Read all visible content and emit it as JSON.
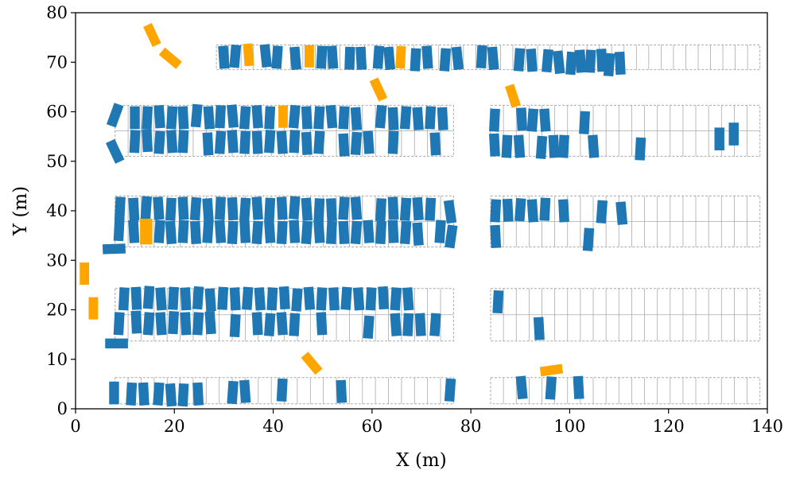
{
  "chart_data": {
    "type": "scatter",
    "title": "",
    "xlabel": "X (m)",
    "ylabel": "Y (m)",
    "xlim": [
      0,
      140
    ],
    "ylim": [
      0,
      80
    ],
    "xticks": [
      0,
      20,
      40,
      60,
      80,
      100,
      120,
      140
    ],
    "yticks": [
      0,
      10,
      20,
      30,
      40,
      50,
      60,
      70,
      80
    ],
    "grid": false,
    "legend": null,
    "colors": {
      "parked": "#1f77b4",
      "moving": "#ffa500",
      "slot_outline": "#aaaaaa"
    },
    "slot_rows": [
      {
        "x0": 28.5,
        "x1": 138.5,
        "y0": 68.5,
        "y1": 73.5,
        "n": 44,
        "divider": false
      },
      {
        "x0": 8,
        "x1": 76.5,
        "y0": 51,
        "y1": 61.3,
        "n": 26,
        "divider": true
      },
      {
        "x0": 84,
        "x1": 138.5,
        "y0": 51,
        "y1": 61.3,
        "n": 21,
        "divider": true
      },
      {
        "x0": 8,
        "x1": 76.5,
        "y0": 32.7,
        "y1": 43,
        "n": 26,
        "divider": true
      },
      {
        "x0": 84,
        "x1": 138.5,
        "y0": 32.7,
        "y1": 43,
        "n": 21,
        "divider": true
      },
      {
        "x0": 8,
        "x1": 76.5,
        "y0": 13.7,
        "y1": 24.3,
        "n": 26,
        "divider": true
      },
      {
        "x0": 84,
        "x1": 138.5,
        "y0": 13.7,
        "y1": 24.3,
        "n": 21,
        "divider": true
      },
      {
        "x0": 8,
        "x1": 76.5,
        "y0": 1,
        "y1": 6.3,
        "n": 26,
        "divider": false
      },
      {
        "x0": 84,
        "x1": 138.5,
        "y0": 1,
        "y1": 6.3,
        "n": 21,
        "divider": false
      }
    ],
    "parked_vehicles": [
      {
        "x": 30,
        "y": 71,
        "a": -4
      },
      {
        "x": 32.3,
        "y": 71.2,
        "a": 5
      },
      {
        "x": 38.5,
        "y": 71.3,
        "a": -6
      },
      {
        "x": 40.8,
        "y": 71,
        "a": 4
      },
      {
        "x": 44.5,
        "y": 70.8,
        "a": -5
      },
      {
        "x": 49.8,
        "y": 71,
        "a": 3
      },
      {
        "x": 52,
        "y": 71,
        "a": -4
      },
      {
        "x": 55.5,
        "y": 70.8,
        "a": 2
      },
      {
        "x": 57.8,
        "y": 70.8,
        "a": -3
      },
      {
        "x": 61.3,
        "y": 71,
        "a": 4
      },
      {
        "x": 63.5,
        "y": 70.8,
        "a": -5
      },
      {
        "x": 68.8,
        "y": 70.5,
        "a": 3
      },
      {
        "x": 71.2,
        "y": 71,
        "a": -4
      },
      {
        "x": 74.8,
        "y": 70.5,
        "a": 4
      },
      {
        "x": 77.3,
        "y": 70.8,
        "a": -6
      },
      {
        "x": 82.2,
        "y": 71.1,
        "a": 3
      },
      {
        "x": 84.5,
        "y": 70.8,
        "a": -5
      },
      {
        "x": 89.8,
        "y": 70.5,
        "a": 4
      },
      {
        "x": 92.3,
        "y": 70.4,
        "a": -4
      },
      {
        "x": 95.5,
        "y": 70.3,
        "a": 5
      },
      {
        "x": 97.8,
        "y": 70,
        "a": -6
      },
      {
        "x": 100.3,
        "y": 69.8,
        "a": 4
      },
      {
        "x": 102.2,
        "y": 70.2,
        "a": -4
      },
      {
        "x": 104.2,
        "y": 70.2,
        "a": 3
      },
      {
        "x": 106.5,
        "y": 70.4,
        "a": -3
      },
      {
        "x": 108,
        "y": 69.5,
        "a": 4
      },
      {
        "x": 110.2,
        "y": 69.8,
        "a": -3
      },
      {
        "x": 8,
        "y": 59.3,
        "a": 20
      },
      {
        "x": 12,
        "y": 58.8,
        "a": 0
      },
      {
        "x": 14.5,
        "y": 58.8,
        "a": 3
      },
      {
        "x": 17,
        "y": 59,
        "a": -4
      },
      {
        "x": 19.5,
        "y": 58.8,
        "a": 4
      },
      {
        "x": 21.8,
        "y": 58.8,
        "a": -3
      },
      {
        "x": 24.5,
        "y": 59.2,
        "a": 5
      },
      {
        "x": 27,
        "y": 58.8,
        "a": -4
      },
      {
        "x": 29.3,
        "y": 59,
        "a": 3
      },
      {
        "x": 31.8,
        "y": 59.1,
        "a": -5
      },
      {
        "x": 34.3,
        "y": 58.8,
        "a": 4
      },
      {
        "x": 36.8,
        "y": 59,
        "a": -4
      },
      {
        "x": 39.3,
        "y": 58.8,
        "a": 3
      },
      {
        "x": 44.3,
        "y": 59,
        "a": 5
      },
      {
        "x": 46.8,
        "y": 58.8,
        "a": -3
      },
      {
        "x": 49.3,
        "y": 58.8,
        "a": 4
      },
      {
        "x": 51.8,
        "y": 59,
        "a": -5
      },
      {
        "x": 54.3,
        "y": 58.8,
        "a": 3
      },
      {
        "x": 56.8,
        "y": 58.6,
        "a": -4
      },
      {
        "x": 61.8,
        "y": 59,
        "a": 5
      },
      {
        "x": 64.3,
        "y": 58.6,
        "a": -3
      },
      {
        "x": 66.8,
        "y": 58.8,
        "a": 4
      },
      {
        "x": 69.3,
        "y": 58.6,
        "a": -4
      },
      {
        "x": 71.8,
        "y": 58.8,
        "a": 3
      },
      {
        "x": 74.3,
        "y": 58.6,
        "a": -3
      },
      {
        "x": 84.8,
        "y": 58.3,
        "a": 3
      },
      {
        "x": 90.3,
        "y": 58.5,
        "a": -3
      },
      {
        "x": 92.5,
        "y": 58.3,
        "a": 4
      },
      {
        "x": 95,
        "y": 58.3,
        "a": -4
      },
      {
        "x": 103,
        "y": 57.8,
        "a": 3
      },
      {
        "x": 8,
        "y": 52,
        "a": -25
      },
      {
        "x": 12,
        "y": 54,
        "a": 3
      },
      {
        "x": 14.5,
        "y": 54.2,
        "a": -3
      },
      {
        "x": 17,
        "y": 53.8,
        "a": 4
      },
      {
        "x": 19.5,
        "y": 54,
        "a": -4
      },
      {
        "x": 21.8,
        "y": 54,
        "a": 3
      },
      {
        "x": 26.8,
        "y": 53.5,
        "a": -3
      },
      {
        "x": 29.3,
        "y": 53.8,
        "a": 4
      },
      {
        "x": 31.8,
        "y": 54,
        "a": -4
      },
      {
        "x": 34.3,
        "y": 53.8,
        "a": 3
      },
      {
        "x": 36.8,
        "y": 53.8,
        "a": -3
      },
      {
        "x": 39.3,
        "y": 54,
        "a": 4
      },
      {
        "x": 41.8,
        "y": 53.8,
        "a": -4
      },
      {
        "x": 44.3,
        "y": 54,
        "a": 3
      },
      {
        "x": 46.8,
        "y": 53.6,
        "a": -3
      },
      {
        "x": 49.3,
        "y": 53.8,
        "a": 4
      },
      {
        "x": 54.3,
        "y": 53.3,
        "a": -3
      },
      {
        "x": 56.8,
        "y": 53.6,
        "a": 4
      },
      {
        "x": 59.3,
        "y": 53.8,
        "a": -4
      },
      {
        "x": 64.3,
        "y": 53.8,
        "a": 3
      },
      {
        "x": 72.8,
        "y": 53.5,
        "a": -3
      },
      {
        "x": 84.8,
        "y": 53.3,
        "a": -3
      },
      {
        "x": 87.3,
        "y": 53,
        "a": 3
      },
      {
        "x": 89.8,
        "y": 53,
        "a": -4
      },
      {
        "x": 94.3,
        "y": 52.8,
        "a": 4
      },
      {
        "x": 96.8,
        "y": 53,
        "a": -3
      },
      {
        "x": 98.8,
        "y": 53,
        "a": 3
      },
      {
        "x": 104.8,
        "y": 53,
        "a": -4
      },
      {
        "x": 114.3,
        "y": 52.5,
        "a": 3
      },
      {
        "x": 130.3,
        "y": 54.5,
        "a": 0
      },
      {
        "x": 133.2,
        "y": 55.5,
        "a": 0
      },
      {
        "x": 9,
        "y": 40.5,
        "a": 3
      },
      {
        "x": 11.8,
        "y": 40.3,
        "a": -3
      },
      {
        "x": 14.3,
        "y": 40.6,
        "a": 4
      },
      {
        "x": 16.8,
        "y": 40.5,
        "a": -4
      },
      {
        "x": 19.3,
        "y": 40.3,
        "a": 3
      },
      {
        "x": 21.8,
        "y": 40.5,
        "a": -3
      },
      {
        "x": 24.3,
        "y": 40.4,
        "a": 4
      },
      {
        "x": 26.8,
        "y": 40.2,
        "a": -4
      },
      {
        "x": 29.3,
        "y": 40.5,
        "a": 3
      },
      {
        "x": 31.8,
        "y": 40.4,
        "a": -3
      },
      {
        "x": 34.3,
        "y": 40.3,
        "a": 4
      },
      {
        "x": 36.8,
        "y": 40.5,
        "a": -4
      },
      {
        "x": 39.3,
        "y": 40.3,
        "a": 3
      },
      {
        "x": 41.8,
        "y": 40.5,
        "a": -3
      },
      {
        "x": 44.3,
        "y": 40.6,
        "a": 4
      },
      {
        "x": 46.8,
        "y": 40.3,
        "a": -4
      },
      {
        "x": 49.3,
        "y": 40.2,
        "a": 3
      },
      {
        "x": 51.8,
        "y": 40.2,
        "a": -3
      },
      {
        "x": 54.3,
        "y": 40.5,
        "a": 4
      },
      {
        "x": 56.8,
        "y": 40.5,
        "a": -4
      },
      {
        "x": 61.8,
        "y": 40.2,
        "a": 3
      },
      {
        "x": 64.3,
        "y": 40.5,
        "a": -3
      },
      {
        "x": 66.8,
        "y": 40.3,
        "a": 4
      },
      {
        "x": 69.3,
        "y": 40.4,
        "a": -4
      },
      {
        "x": 71.8,
        "y": 40.3,
        "a": 3
      },
      {
        "x": 75.8,
        "y": 39.8,
        "a": -8
      },
      {
        "x": 85,
        "y": 40,
        "a": 3
      },
      {
        "x": 87.5,
        "y": 40.1,
        "a": -3
      },
      {
        "x": 90,
        "y": 40.2,
        "a": 4
      },
      {
        "x": 92.5,
        "y": 40,
        "a": -4
      },
      {
        "x": 95,
        "y": 40.3,
        "a": 3
      },
      {
        "x": 98.8,
        "y": 40,
        "a": -3
      },
      {
        "x": 106.5,
        "y": 39.8,
        "a": 4
      },
      {
        "x": 110.5,
        "y": 39.5,
        "a": -5
      },
      {
        "x": 8.8,
        "y": 36.2,
        "a": 3
      },
      {
        "x": 11.8,
        "y": 35.8,
        "a": -3
      },
      {
        "x": 17,
        "y": 35.8,
        "a": 4
      },
      {
        "x": 19.3,
        "y": 35.6,
        "a": -4
      },
      {
        "x": 21.8,
        "y": 35.8,
        "a": 3
      },
      {
        "x": 24.3,
        "y": 35.6,
        "a": -3
      },
      {
        "x": 26.8,
        "y": 35.8,
        "a": 4
      },
      {
        "x": 29.3,
        "y": 35.8,
        "a": -4
      },
      {
        "x": 31.8,
        "y": 35.6,
        "a": 3
      },
      {
        "x": 34.3,
        "y": 35.8,
        "a": -3
      },
      {
        "x": 36.8,
        "y": 35.6,
        "a": 4
      },
      {
        "x": 39.3,
        "y": 35.8,
        "a": -4
      },
      {
        "x": 41.8,
        "y": 35.6,
        "a": 3
      },
      {
        "x": 44.3,
        "y": 35.8,
        "a": -3
      },
      {
        "x": 46.8,
        "y": 35.6,
        "a": 4
      },
      {
        "x": 49.3,
        "y": 35.8,
        "a": -4
      },
      {
        "x": 51.8,
        "y": 35.6,
        "a": 3
      },
      {
        "x": 54.3,
        "y": 35.6,
        "a": -3
      },
      {
        "x": 56.8,
        "y": 35.6,
        "a": 4
      },
      {
        "x": 59.3,
        "y": 35.8,
        "a": -4
      },
      {
        "x": 61.8,
        "y": 35.6,
        "a": 3
      },
      {
        "x": 64.3,
        "y": 35.8,
        "a": -3
      },
      {
        "x": 66.8,
        "y": 35.6,
        "a": 4
      },
      {
        "x": 69.3,
        "y": 35.3,
        "a": -4
      },
      {
        "x": 73.8,
        "y": 35.8,
        "a": 4
      },
      {
        "x": 76,
        "y": 34.8,
        "a": 8
      },
      {
        "x": 85,
        "y": 34.8,
        "a": -3
      },
      {
        "x": 103.8,
        "y": 34.2,
        "a": 4
      },
      {
        "x": 7.8,
        "y": 32.3,
        "a": 88
      },
      {
        "x": 9.8,
        "y": 22.2,
        "a": 3
      },
      {
        "x": 12.3,
        "y": 22.3,
        "a": -3
      },
      {
        "x": 14.8,
        "y": 22.5,
        "a": 4
      },
      {
        "x": 17.3,
        "y": 22.2,
        "a": -4
      },
      {
        "x": 19.8,
        "y": 22.3,
        "a": 3
      },
      {
        "x": 22.3,
        "y": 22.2,
        "a": -3
      },
      {
        "x": 24.8,
        "y": 22.4,
        "a": 4
      },
      {
        "x": 27.3,
        "y": 22,
        "a": -4
      },
      {
        "x": 29.8,
        "y": 22.3,
        "a": 3
      },
      {
        "x": 32.3,
        "y": 22.2,
        "a": -3
      },
      {
        "x": 34.8,
        "y": 22.3,
        "a": 4
      },
      {
        "x": 37.3,
        "y": 22.2,
        "a": -4
      },
      {
        "x": 39.8,
        "y": 22.2,
        "a": 3
      },
      {
        "x": 42.3,
        "y": 22.4,
        "a": -3
      },
      {
        "x": 44.8,
        "y": 22,
        "a": 4
      },
      {
        "x": 47.3,
        "y": 22.3,
        "a": -4
      },
      {
        "x": 49.8,
        "y": 22.2,
        "a": 3
      },
      {
        "x": 52.3,
        "y": 22.2,
        "a": -3
      },
      {
        "x": 54.8,
        "y": 22.3,
        "a": 4
      },
      {
        "x": 57.3,
        "y": 22.2,
        "a": -4
      },
      {
        "x": 59.8,
        "y": 22.2,
        "a": 3
      },
      {
        "x": 62.3,
        "y": 22.4,
        "a": -3
      },
      {
        "x": 64.8,
        "y": 22.2,
        "a": 4
      },
      {
        "x": 67.3,
        "y": 22.2,
        "a": -4
      },
      {
        "x": 85.5,
        "y": 21.6,
        "a": 3
      },
      {
        "x": 8.8,
        "y": 17.2,
        "a": 3
      },
      {
        "x": 12.3,
        "y": 17.5,
        "a": -3
      },
      {
        "x": 14.8,
        "y": 17.2,
        "a": 4
      },
      {
        "x": 17.3,
        "y": 17.2,
        "a": -4
      },
      {
        "x": 19.8,
        "y": 17.4,
        "a": 3
      },
      {
        "x": 22.3,
        "y": 17.2,
        "a": -3
      },
      {
        "x": 24.8,
        "y": 17.2,
        "a": 4
      },
      {
        "x": 27.3,
        "y": 17.4,
        "a": -4
      },
      {
        "x": 32.3,
        "y": 16.8,
        "a": 3
      },
      {
        "x": 36.8,
        "y": 17.2,
        "a": -3
      },
      {
        "x": 39.3,
        "y": 17,
        "a": 4
      },
      {
        "x": 41.8,
        "y": 17.2,
        "a": -4
      },
      {
        "x": 44.3,
        "y": 17,
        "a": 3
      },
      {
        "x": 49.8,
        "y": 17.2,
        "a": -3
      },
      {
        "x": 59.3,
        "y": 16.5,
        "a": 4
      },
      {
        "x": 64.8,
        "y": 17,
        "a": -4
      },
      {
        "x": 67.3,
        "y": 17,
        "a": 3
      },
      {
        "x": 69.8,
        "y": 17,
        "a": -3
      },
      {
        "x": 72.8,
        "y": 17,
        "a": 4
      },
      {
        "x": 93.8,
        "y": 16.2,
        "a": -3
      },
      {
        "x": 8.3,
        "y": 13.2,
        "a": 90
      },
      {
        "x": 7.8,
        "y": 3.2,
        "a": 0
      },
      {
        "x": 11.3,
        "y": 3,
        "a": 3
      },
      {
        "x": 13.8,
        "y": 3,
        "a": -3
      },
      {
        "x": 16.8,
        "y": 3,
        "a": 4
      },
      {
        "x": 19.3,
        "y": 2.8,
        "a": -4
      },
      {
        "x": 21.8,
        "y": 2.8,
        "a": 3
      },
      {
        "x": 24.8,
        "y": 3,
        "a": -3
      },
      {
        "x": 31.8,
        "y": 3.3,
        "a": 4
      },
      {
        "x": 34.3,
        "y": 3.5,
        "a": -4
      },
      {
        "x": 41.8,
        "y": 3.8,
        "a": 3
      },
      {
        "x": 53.8,
        "y": 3.5,
        "a": -3
      },
      {
        "x": 75.8,
        "y": 3.8,
        "a": 4
      },
      {
        "x": 90.3,
        "y": 4.3,
        "a": -5
      },
      {
        "x": 96.2,
        "y": 4.2,
        "a": 4
      },
      {
        "x": 101.8,
        "y": 4.3,
        "a": -3
      }
    ],
    "moving_vehicles": [
      {
        "x": 15.5,
        "y": 75.5,
        "a": 65,
        "w": 4.5,
        "h": 1.9
      },
      {
        "x": 19.2,
        "y": 70.8,
        "a": 40,
        "w": 4.5,
        "h": 1.9
      },
      {
        "x": 35,
        "y": 71.5,
        "a": -4,
        "w": 1.9,
        "h": 4.5
      },
      {
        "x": 47.3,
        "y": 71.2,
        "a": 0,
        "w": 1.9,
        "h": 4.5
      },
      {
        "x": 65.8,
        "y": 71,
        "a": 3,
        "w": 1.9,
        "h": 4.5
      },
      {
        "x": 61.3,
        "y": 64.5,
        "a": 65,
        "w": 4.5,
        "h": 1.9
      },
      {
        "x": 88.5,
        "y": 63.2,
        "a": 72,
        "w": 4.5,
        "h": 1.9
      },
      {
        "x": 42,
        "y": 59,
        "a": 0,
        "w": 1.9,
        "h": 4.5
      },
      {
        "x": 14.3,
        "y": 35.8,
        "a": 0,
        "w": 2.5,
        "h": 5.2
      },
      {
        "x": 1.8,
        "y": 27.3,
        "a": 0,
        "w": 1.9,
        "h": 4.5
      },
      {
        "x": 3.6,
        "y": 20.3,
        "a": 0,
        "w": 1.9,
        "h": 4.5
      },
      {
        "x": 47.8,
        "y": 9.2,
        "a": 50,
        "w": 4.5,
        "h": 1.9
      },
      {
        "x": 96.3,
        "y": 7.8,
        "a": -8,
        "w": 4.5,
        "h": 1.9
      }
    ]
  }
}
